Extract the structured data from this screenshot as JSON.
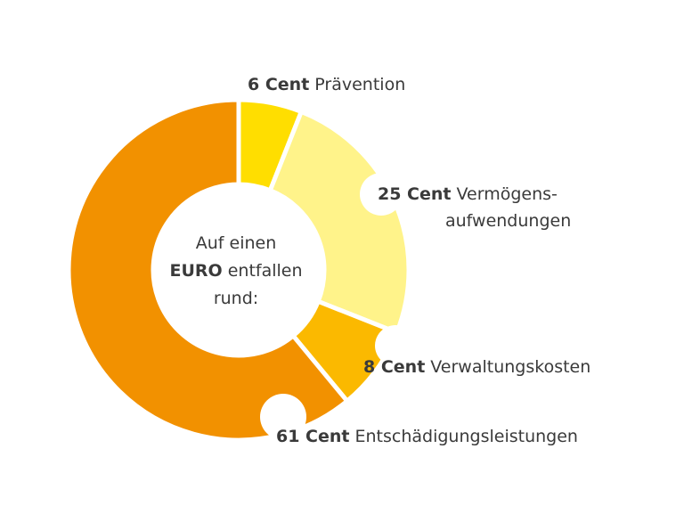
{
  "chart_data": {
    "type": "pie",
    "style": "donut",
    "center_text": {
      "line1": "Auf einen",
      "bold": "EURO",
      "line2_rest": "entfallen",
      "line3": "rund:"
    },
    "slices": [
      {
        "value": 6,
        "unit": "Cent",
        "value_label": "6 Cent",
        "label": "Prävention",
        "color": "#ffde00"
      },
      {
        "value": 25,
        "unit": "Cent",
        "value_label": "25 Cent",
        "label_line1": "Vermögens-",
        "label_line2": "aufwendungen",
        "color": "#fff38a"
      },
      {
        "value": 8,
        "unit": "Cent",
        "value_label": "8 Cent",
        "label": "Verwaltungskosten",
        "color": "#fbb900"
      },
      {
        "value": 61,
        "unit": "Cent",
        "value_label": "61 Cent",
        "label": "Entschädigungsleistungen",
        "color": "#f29100"
      }
    ]
  }
}
